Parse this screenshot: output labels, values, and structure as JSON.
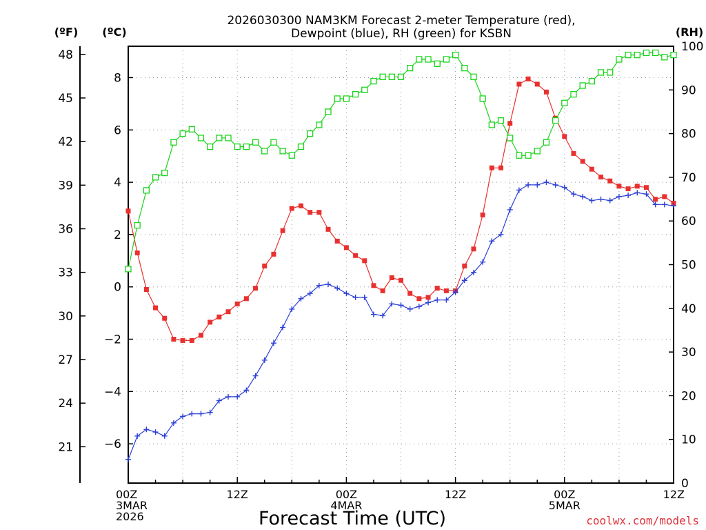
{
  "chart_data": {
    "type": "line",
    "title_line1": "2026030300 NAM3KM Forecast 2-meter Temperature (red),",
    "title_line2": "Dewpoint (blue), RH (green) for KSBN",
    "xlabel": "Forecast Time (UTC)",
    "watermark": "coolwx.com/models",
    "left_outer_axis": {
      "unit_label": "(ºF)",
      "ticks": [
        21,
        24,
        27,
        30,
        33,
        36,
        39,
        42,
        45,
        48
      ]
    },
    "left_axis": {
      "unit_label": "(ºC)",
      "ylim": [
        -7.5,
        9.2
      ],
      "ticks": [
        -6,
        -4,
        -2,
        0,
        2,
        4,
        6,
        8
      ]
    },
    "right_axis": {
      "unit_label": "(RH)",
      "ylim": [
        0,
        100
      ],
      "ticks": [
        0,
        10,
        20,
        30,
        40,
        50,
        60,
        70,
        80,
        90,
        100
      ]
    },
    "xlim": [
      0,
      60
    ],
    "x_ticks": [
      {
        "x": 0,
        "line1": "00Z",
        "line2": "3MAR",
        "line3": "2026"
      },
      {
        "x": 12,
        "line1": "12Z",
        "line2": "",
        "line3": ""
      },
      {
        "x": 24,
        "line1": "00Z",
        "line2": "4MAR",
        "line3": ""
      },
      {
        "x": 36,
        "line1": "12Z",
        "line2": "",
        "line3": ""
      },
      {
        "x": 48,
        "line1": "00Z",
        "line2": "5MAR",
        "line3": ""
      },
      {
        "x": 60,
        "line1": "12Z",
        "line2": "",
        "line3": ""
      }
    ],
    "grid": true,
    "colors": {
      "temperature": "#e8312f",
      "dewpoint": "#2b3fd6",
      "rh": "#19d419",
      "grid": "#9a9a9a"
    },
    "series": [
      {
        "name": "Temperature (°C)",
        "axis": "left",
        "marker": "filled-square",
        "color": "#e8312f",
        "values": [
          2.9,
          1.3,
          -0.1,
          -0.8,
          -1.2,
          -2.0,
          -2.05,
          -2.05,
          -1.85,
          -1.35,
          -1.15,
          -0.95,
          -0.65,
          -0.45,
          -0.05,
          0.8,
          1.25,
          2.15,
          3.0,
          3.1,
          2.85,
          2.85,
          2.2,
          1.75,
          1.5,
          1.2,
          1.0,
          0.05,
          -0.15,
          0.35,
          0.25,
          -0.25,
          -0.45,
          -0.4,
          -0.05,
          -0.15,
          -0.15,
          0.8,
          1.45,
          2.75,
          4.55,
          4.55,
          6.25,
          7.75,
          7.95,
          7.75,
          7.45,
          6.45,
          5.75,
          5.1,
          4.8,
          4.5,
          4.2,
          4.05,
          3.85,
          3.75,
          3.85,
          3.8,
          3.35,
          3.45,
          3.2
        ]
      },
      {
        "name": "Dewpoint (°C)",
        "axis": "left",
        "marker": "plus",
        "color": "#2b3fd6",
        "values": [
          -6.6,
          -5.7,
          -5.45,
          -5.55,
          -5.7,
          -5.2,
          -4.95,
          -4.85,
          -4.85,
          -4.8,
          -4.35,
          -4.2,
          -4.2,
          -3.95,
          -3.4,
          -2.8,
          -2.15,
          -1.55,
          -0.85,
          -0.45,
          -0.25,
          0.05,
          0.1,
          -0.05,
          -0.25,
          -0.4,
          -0.4,
          -1.05,
          -1.1,
          -0.65,
          -0.7,
          -0.85,
          -0.75,
          -0.6,
          -0.5,
          -0.5,
          -0.2,
          0.25,
          0.55,
          0.95,
          1.75,
          2.0,
          2.95,
          3.7,
          3.9,
          3.9,
          4.0,
          3.9,
          3.8,
          3.55,
          3.45,
          3.3,
          3.35,
          3.3,
          3.45,
          3.5,
          3.6,
          3.55,
          3.15,
          3.15,
          3.1
        ]
      },
      {
        "name": "RH (%)",
        "axis": "right",
        "marker": "open-square",
        "color": "#19d419",
        "values": [
          49,
          59,
          67,
          70,
          71,
          78,
          80,
          81,
          79,
          77,
          79,
          79,
          77,
          77,
          78,
          76,
          78,
          76,
          75,
          77,
          80,
          82,
          85,
          88,
          88,
          89,
          90,
          92,
          93,
          93,
          93,
          95,
          97,
          97,
          96,
          97,
          98,
          95,
          93,
          88,
          82,
          83,
          79,
          75,
          75,
          76,
          78,
          83,
          87,
          89,
          91,
          92,
          94,
          94,
          97,
          98,
          98,
          98.5,
          98.5,
          97.5,
          98
        ]
      }
    ]
  }
}
